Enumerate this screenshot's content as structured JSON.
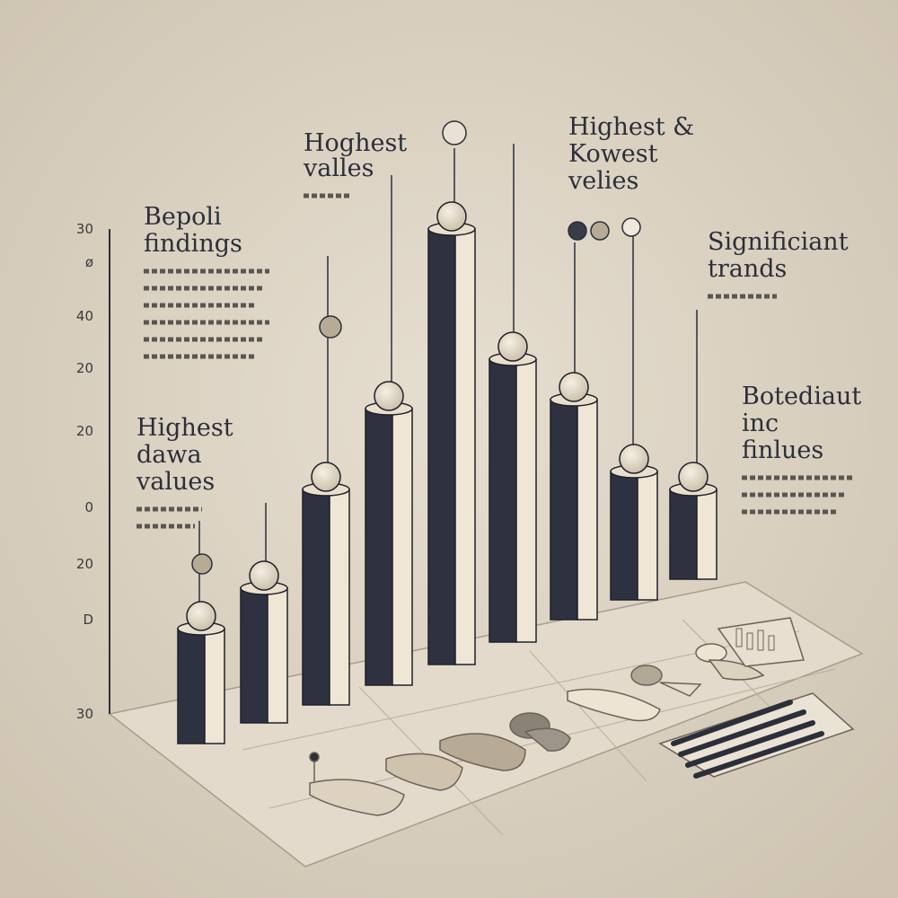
{
  "axis": {
    "labels": [
      "30",
      "ø",
      "40",
      "20",
      "20",
      "0",
      "20",
      "D",
      "30"
    ]
  },
  "annotations": {
    "report_findings": [
      "Bepoli",
      "findings"
    ],
    "highest_values_top": [
      "Hoghest",
      "valles"
    ],
    "highest_lowest": [
      "Highest &",
      "Kowest",
      "velies"
    ],
    "significant_trends": [
      "Significiant",
      "trands"
    ],
    "highest_data_values": [
      "Highest",
      "dawa",
      "values"
    ],
    "important_findings": [
      "Botediaut",
      "inc",
      "finlues"
    ]
  }
}
